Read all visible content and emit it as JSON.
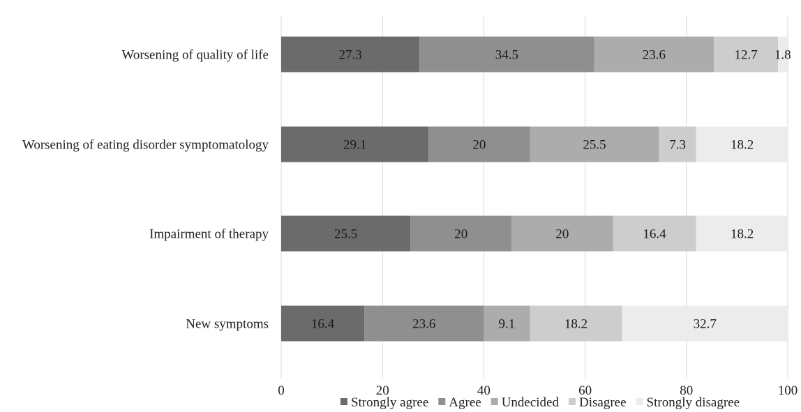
{
  "chart_data": {
    "type": "bar",
    "orientation": "horizontal",
    "stacked": true,
    "categories": [
      "Worsening of quality of life",
      "Worsening of eating disorder symptomatology",
      "Impairment of therapy",
      "New symptoms"
    ],
    "series": [
      {
        "name": "Strongly agree",
        "color": "#6b6b6b",
        "values": [
          27.3,
          29.1,
          25.5,
          16.4
        ]
      },
      {
        "name": "Agree",
        "color": "#8f8f8f",
        "values": [
          34.5,
          20,
          20,
          23.6
        ]
      },
      {
        "name": "Undecided",
        "color": "#acacac",
        "values": [
          23.6,
          25.5,
          20,
          9.1
        ]
      },
      {
        "name": "Disagree",
        "color": "#cdcdcd",
        "values": [
          12.7,
          7.3,
          16.4,
          18.2
        ]
      },
      {
        "name": "Strongly disagree",
        "color": "#ececec",
        "values": [
          1.8,
          18.2,
          18.2,
          32.7
        ]
      }
    ],
    "data_labels": [
      [
        "27.3",
        "34.5",
        "23.6",
        "12.7",
        "1.8"
      ],
      [
        "29.1",
        "20",
        "25.5",
        "7.3",
        "18.2"
      ],
      [
        "25.5",
        "20",
        "20",
        "16.4",
        "18.2"
      ],
      [
        "16.4",
        "23.6",
        "9.1",
        "18.2",
        "32.7"
      ]
    ],
    "xlim": [
      0,
      100
    ],
    "xticks": [
      "0",
      "20",
      "40",
      "60",
      "80",
      "100"
    ],
    "title": "",
    "xlabel": "",
    "ylabel": "",
    "grid": "vertical",
    "legend_position": "bottom"
  }
}
